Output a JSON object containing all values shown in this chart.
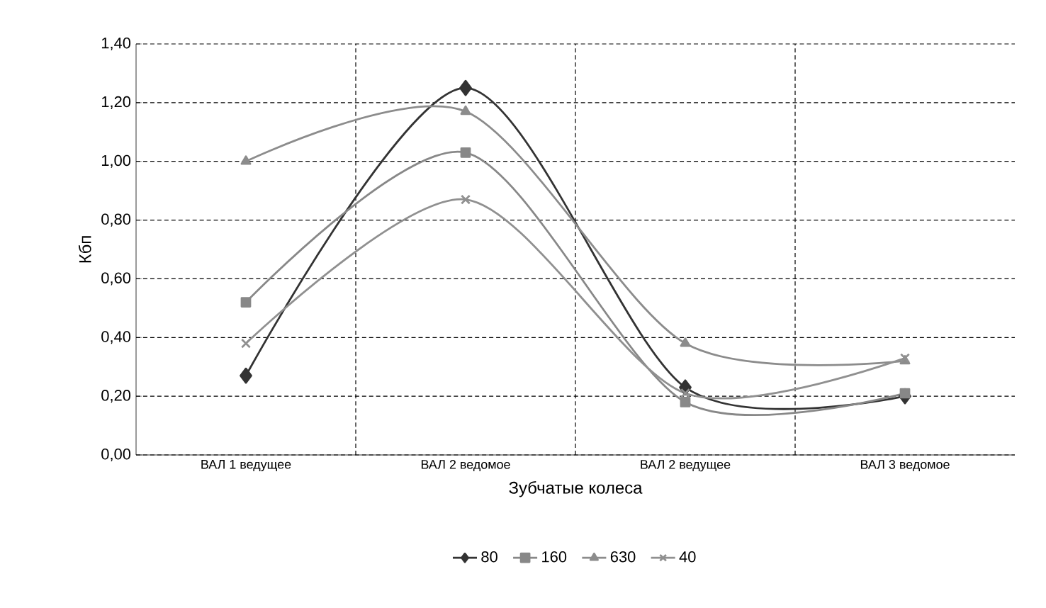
{
  "chart_data": {
    "type": "line",
    "xlabel": "Зубчатые колеса",
    "ylabel": "Кбп",
    "categories": [
      "ВАЛ 1 ведущее",
      "ВАЛ 2 ведомое",
      "ВАЛ 2 ведущее",
      "ВАЛ 3 ведомое"
    ],
    "series": [
      {
        "name": "80",
        "color": "#333333",
        "marker": "diamond",
        "values": [
          0.27,
          1.25,
          0.23,
          0.2
        ]
      },
      {
        "name": "160",
        "color": "#888888",
        "marker": "square",
        "values": [
          0.52,
          1.03,
          0.18,
          0.21
        ]
      },
      {
        "name": "630",
        "color": "#8c8c8c",
        "marker": "triangle",
        "values": [
          1.0,
          1.17,
          0.38,
          0.32
        ]
      },
      {
        "name": "40",
        "color": "#909090",
        "marker": "cross",
        "values": [
          0.38,
          0.87,
          0.21,
          0.33
        ]
      }
    ],
    "ylim": [
      0,
      1.4
    ],
    "yticks": [
      {
        "value": 0,
        "label": "0,00"
      },
      {
        "value": 0.2,
        "label": "0,20"
      },
      {
        "value": 0.4,
        "label": "0,40"
      },
      {
        "value": 0.6,
        "label": "0,60"
      },
      {
        "value": 0.8,
        "label": "0,80"
      },
      {
        "value": 1.0,
        "label": "1,00"
      },
      {
        "value": 1.2,
        "label": "1,20"
      },
      {
        "value": 1.4,
        "label": "1,40"
      }
    ],
    "grid": true,
    "legend": "bottom",
    "line_style": "solid"
  }
}
